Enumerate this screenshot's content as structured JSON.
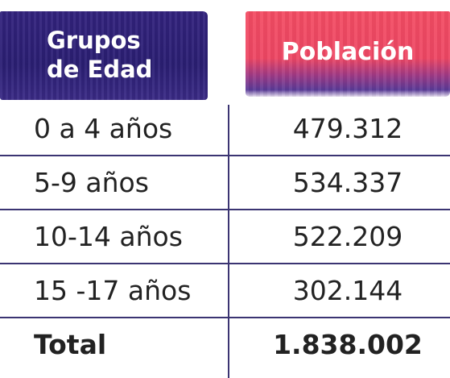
{
  "table": {
    "header": {
      "left": [
        "Grupos",
        "de Edad"
      ],
      "right": "Población"
    },
    "rows": [
      [
        "0 a 4 años",
        "479.312"
      ],
      [
        "5-9 años",
        "534.337"
      ],
      [
        "10-14 años",
        "522.209"
      ],
      [
        "15 -17 años",
        "302.144"
      ]
    ],
    "total": [
      "Total",
      "1.838.002"
    ]
  }
}
